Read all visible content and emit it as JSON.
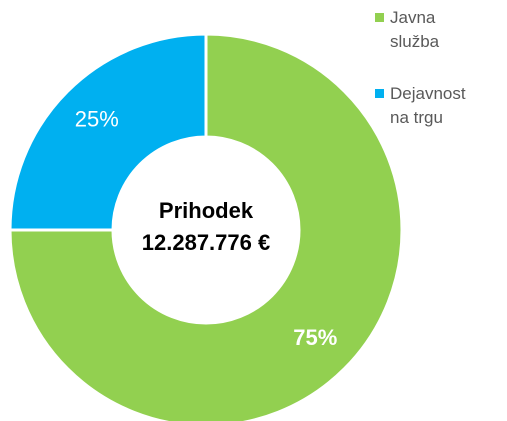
{
  "chart_data": {
    "type": "donut",
    "center_label": [
      "Prihodek",
      "12.287.776 €"
    ],
    "categories": [
      "Javna služba",
      "Dejavnost na trgu"
    ],
    "values": [
      75,
      25
    ],
    "value_labels": [
      "75%",
      "25%"
    ],
    "colors": [
      "#92d050",
      "#00b0f0"
    ],
    "legend": "top-right"
  }
}
